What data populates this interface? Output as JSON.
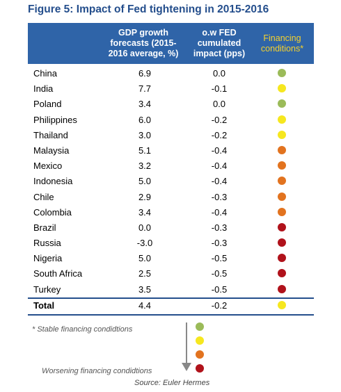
{
  "chart_data": {
    "type": "table",
    "title": "Figure 5: Impact of Fed tightening in 2015-2016",
    "columns": [
      "",
      "GDP growth\nforecasts (2015-\n2016 average, %)",
      "o.w FED\ncumulated\nimpact (pps)",
      "Financing\nconditions*"
    ],
    "rows": [
      {
        "country": "China",
        "gdp": "6.9",
        "fed": "0.0",
        "cond": "green"
      },
      {
        "country": "India",
        "gdp": "7.7",
        "fed": "-0.1",
        "cond": "yellow"
      },
      {
        "country": "Poland",
        "gdp": "3.4",
        "fed": "0.0",
        "cond": "green"
      },
      {
        "country": "Philippines",
        "gdp": "6.0",
        "fed": "-0.2",
        "cond": "yellow"
      },
      {
        "country": "Thailand",
        "gdp": "3.0",
        "fed": "-0.2",
        "cond": "yellow"
      },
      {
        "country": "Malaysia",
        "gdp": "5.1",
        "fed": "-0.4",
        "cond": "orange"
      },
      {
        "country": "Mexico",
        "gdp": "3.2",
        "fed": "-0.4",
        "cond": "orange"
      },
      {
        "country": "Indonesia",
        "gdp": "5.0",
        "fed": "-0.4",
        "cond": "orange"
      },
      {
        "country": "Chile",
        "gdp": "2.9",
        "fed": "-0.3",
        "cond": "orange"
      },
      {
        "country": "Colombia",
        "gdp": "3.4",
        "fed": "-0.4",
        "cond": "orange"
      },
      {
        "country": "Brazil",
        "gdp": "0.0",
        "fed": "-0.3",
        "cond": "red"
      },
      {
        "country": "Russia",
        "gdp": "-3.0",
        "fed": "-0.3",
        "cond": "red"
      },
      {
        "country": "Nigeria",
        "gdp": "5.0",
        "fed": "-0.5",
        "cond": "red"
      },
      {
        "country": "South Africa",
        "gdp": "2.5",
        "fed": "-0.5",
        "cond": "red"
      },
      {
        "country": "Turkey",
        "gdp": "3.5",
        "fed": "-0.5",
        "cond": "red"
      }
    ],
    "total": {
      "country": "Total",
      "gdp": "4.4",
      "fed": "-0.2",
      "cond": "yellow"
    }
  },
  "legend": {
    "stable": "* Stable financing condidtions",
    "worsening": "Worsening financing condidtions",
    "order": [
      "green",
      "yellow",
      "orange",
      "red"
    ]
  },
  "source": "Source: Euler Hermes",
  "colors": {
    "green": "#9bbb59",
    "yellow": "#f6e71f",
    "orange": "#e2731f",
    "red": "#b0121b",
    "header_bg": "#2f64a8",
    "title": "#244e8c"
  }
}
